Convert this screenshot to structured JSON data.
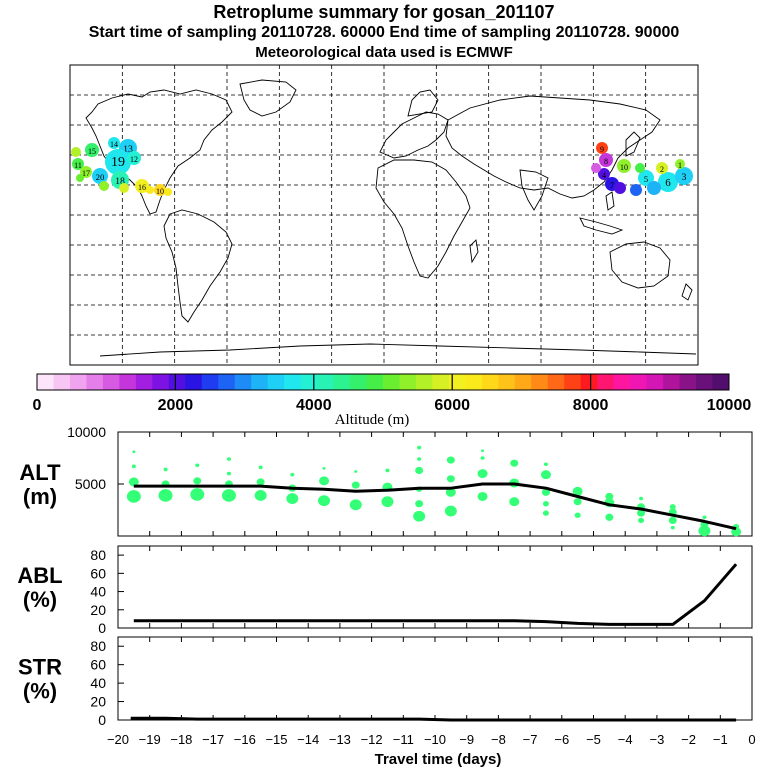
{
  "header": {
    "title": "Retroplume summary for gosan_201107",
    "sampling_line": "Start time of sampling 20110728. 60000     End time of sampling 20110728. 90000",
    "met_line": "Meteorological data used is ECMWF"
  },
  "colorbar": {
    "label": "Altitude (m)",
    "ticks": [
      "0",
      "2000",
      "4000",
      "6000",
      "8000",
      "10000"
    ],
    "colors": [
      "#fde6fb",
      "#f7c6f5",
      "#f0a3ef",
      "#e47ee8",
      "#d65ae2",
      "#c436dc",
      "#a21ee0",
      "#7d12e2",
      "#5210e0",
      "#2a14e4",
      "#1f3cf0",
      "#1d64f4",
      "#1d8cf6",
      "#1eb2f7",
      "#1ecff6",
      "#20e6ee",
      "#24f0d4",
      "#28f2b4",
      "#2cf290",
      "#34f06a",
      "#46ee48",
      "#6aee30",
      "#90f02a",
      "#b4f028",
      "#d6f024",
      "#f2f020",
      "#faea1c",
      "#ffd81a",
      "#ffc218",
      "#ffa818",
      "#ff8a16",
      "#ff6816",
      "#ff4216",
      "#ff1a22",
      "#ff1670",
      "#ff16a0",
      "#f016b4",
      "#d416b4",
      "#b0149c",
      "#8a1288",
      "#6a107a",
      "#520e6c"
    ]
  },
  "chart_data": [
    {
      "type": "line",
      "name": "ALT",
      "ylabel": "ALT\n(m)",
      "ylabel_lines": [
        "ALT",
        "(m)"
      ],
      "ylim": [
        0,
        10000
      ],
      "yticks": [
        0,
        5000,
        10000
      ],
      "ytick_labels": [
        "",
        "5000",
        "10000"
      ],
      "x": [
        -19.5,
        -18.5,
        -17.5,
        -16.5,
        -15.5,
        -14.5,
        -13.5,
        -12.5,
        -11.5,
        -10.5,
        -9.5,
        -8.5,
        -7.5,
        -6.5,
        -5.5,
        -4.5,
        -3.5,
        -2.5,
        -1.5,
        -0.5
      ],
      "mean_altitude": [
        4800,
        4800,
        4800,
        4800,
        4800,
        4600,
        4500,
        4300,
        4400,
        4600,
        4600,
        5000,
        5000,
        4600,
        3800,
        3000,
        2600,
        2000,
        1400,
        700
      ],
      "scatter_color": "#33ff77",
      "scatter_points": [
        {
          "x": -19.5,
          "y": 3800,
          "s": 7
        },
        {
          "x": -19.5,
          "y": 5200,
          "s": 5
        },
        {
          "x": -19.5,
          "y": 6700,
          "s": 2
        },
        {
          "x": -19.5,
          "y": 8100,
          "s": 1.5
        },
        {
          "x": -18.5,
          "y": 3900,
          "s": 7
        },
        {
          "x": -18.5,
          "y": 5000,
          "s": 4
        },
        {
          "x": -18.5,
          "y": 6400,
          "s": 2
        },
        {
          "x": -17.5,
          "y": 4000,
          "s": 7
        },
        {
          "x": -17.5,
          "y": 5300,
          "s": 4
        },
        {
          "x": -17.5,
          "y": 6800,
          "s": 2
        },
        {
          "x": -16.5,
          "y": 3900,
          "s": 7
        },
        {
          "x": -16.5,
          "y": 5000,
          "s": 4
        },
        {
          "x": -16.5,
          "y": 6000,
          "s": 2
        },
        {
          "x": -16.5,
          "y": 7400,
          "s": 2
        },
        {
          "x": -15.5,
          "y": 3900,
          "s": 6
        },
        {
          "x": -15.5,
          "y": 5200,
          "s": 4
        },
        {
          "x": -15.5,
          "y": 6600,
          "s": 2
        },
        {
          "x": -14.5,
          "y": 3600,
          "s": 6
        },
        {
          "x": -14.5,
          "y": 4600,
          "s": 4
        },
        {
          "x": -14.5,
          "y": 5900,
          "s": 2
        },
        {
          "x": -13.5,
          "y": 3400,
          "s": 6
        },
        {
          "x": -13.5,
          "y": 5300,
          "s": 5
        },
        {
          "x": -13.5,
          "y": 6500,
          "s": 1.5
        },
        {
          "x": -12.5,
          "y": 3000,
          "s": 6
        },
        {
          "x": -12.5,
          "y": 4900,
          "s": 4
        },
        {
          "x": -12.5,
          "y": 6200,
          "s": 1.5
        },
        {
          "x": -11.5,
          "y": 3300,
          "s": 6
        },
        {
          "x": -11.5,
          "y": 4700,
          "s": 5
        },
        {
          "x": -11.5,
          "y": 6300,
          "s": 2
        },
        {
          "x": -10.5,
          "y": 1900,
          "s": 6
        },
        {
          "x": -10.5,
          "y": 3100,
          "s": 4
        },
        {
          "x": -10.5,
          "y": 4500,
          "s": 3
        },
        {
          "x": -10.5,
          "y": 6300,
          "s": 4
        },
        {
          "x": -10.5,
          "y": 7400,
          "s": 2
        },
        {
          "x": -10.5,
          "y": 8500,
          "s": 2
        },
        {
          "x": -9.5,
          "y": 2400,
          "s": 6
        },
        {
          "x": -9.5,
          "y": 4200,
          "s": 5
        },
        {
          "x": -9.5,
          "y": 5500,
          "s": 4
        },
        {
          "x": -9.5,
          "y": 7300,
          "s": 4
        },
        {
          "x": -8.5,
          "y": 3800,
          "s": 5
        },
        {
          "x": -8.5,
          "y": 6000,
          "s": 5
        },
        {
          "x": -8.5,
          "y": 7500,
          "s": 2
        },
        {
          "x": -8.5,
          "y": 8200,
          "s": 1.5
        },
        {
          "x": -7.5,
          "y": 3300,
          "s": 5
        },
        {
          "x": -7.5,
          "y": 5100,
          "s": 5
        },
        {
          "x": -7.5,
          "y": 7000,
          "s": 4
        },
        {
          "x": -6.5,
          "y": 2200,
          "s": 3
        },
        {
          "x": -6.5,
          "y": 3100,
          "s": 3
        },
        {
          "x": -6.5,
          "y": 4200,
          "s": 4
        },
        {
          "x": -6.5,
          "y": 5900,
          "s": 5
        },
        {
          "x": -6.5,
          "y": 6900,
          "s": 2
        },
        {
          "x": -5.5,
          "y": 2000,
          "s": 3
        },
        {
          "x": -5.5,
          "y": 3300,
          "s": 4
        },
        {
          "x": -5.5,
          "y": 4300,
          "s": 5
        },
        {
          "x": -4.5,
          "y": 1800,
          "s": 4
        },
        {
          "x": -4.5,
          "y": 3200,
          "s": 5
        },
        {
          "x": -4.5,
          "y": 3800,
          "s": 4
        },
        {
          "x": -3.5,
          "y": 1500,
          "s": 3
        },
        {
          "x": -3.5,
          "y": 2200,
          "s": 4
        },
        {
          "x": -3.5,
          "y": 2800,
          "s": 4
        },
        {
          "x": -3.5,
          "y": 3600,
          "s": 2
        },
        {
          "x": -2.5,
          "y": 800,
          "s": 2
        },
        {
          "x": -2.5,
          "y": 1500,
          "s": 4
        },
        {
          "x": -2.5,
          "y": 2300,
          "s": 4
        },
        {
          "x": -2.5,
          "y": 2800,
          "s": 3
        },
        {
          "x": -1.5,
          "y": 500,
          "s": 6
        },
        {
          "x": -1.5,
          "y": 1100,
          "s": 4
        },
        {
          "x": -1.5,
          "y": 1800,
          "s": 2
        },
        {
          "x": -0.5,
          "y": 400,
          "s": 5
        },
        {
          "x": -0.5,
          "y": 900,
          "s": 3
        }
      ]
    },
    {
      "type": "line",
      "name": "ABL",
      "ylabel_lines": [
        "ABL",
        "(%)"
      ],
      "ylim": [
        0,
        90
      ],
      "yticks": [
        0,
        20,
        40,
        60,
        80
      ],
      "ytick_labels": [
        "0",
        "20",
        "40",
        "60",
        "80"
      ],
      "x": [
        -19.5,
        -18.5,
        -17.5,
        -16.5,
        -15.5,
        -14.5,
        -13.5,
        -12.5,
        -11.5,
        -10.5,
        -9.5,
        -8.5,
        -7.5,
        -6.5,
        -5.5,
        -4.5,
        -3.5,
        -2.5,
        -1.5,
        -0.5
      ],
      "values": [
        8,
        8,
        8,
        8,
        8,
        8,
        8,
        8,
        8,
        8,
        8,
        8,
        8,
        7,
        5,
        4,
        4,
        4,
        30,
        70
      ]
    },
    {
      "type": "line",
      "name": "STR",
      "ylabel_lines": [
        "STR",
        "(%)"
      ],
      "ylim": [
        0,
        90
      ],
      "yticks": [
        0,
        20,
        40,
        60,
        80
      ],
      "ytick_labels": [
        "0",
        "20",
        "40",
        "60",
        "80"
      ],
      "x": [
        -19.6,
        -18.5,
        -17.5,
        -16.5,
        -15.5,
        -14.5,
        -13.5,
        -12.5,
        -11.5,
        -10.5,
        -9.5,
        -8.5,
        -7.5,
        -6.5,
        -5.5,
        -4.5,
        -3.5,
        -2.5,
        -1.5,
        -0.5
      ],
      "values": [
        2,
        2,
        1,
        1,
        1,
        1,
        1,
        1,
        1,
        1,
        0,
        0,
        0,
        0,
        0,
        0,
        0,
        0,
        0,
        0
      ]
    }
  ],
  "xaxis": {
    "label": "Travel time (days)",
    "xlim": [
      -20,
      0
    ],
    "ticks": [
      -20,
      -19,
      -18,
      -17,
      -16,
      -15,
      -14,
      -13,
      -12,
      -11,
      -10,
      -9,
      -8,
      -7,
      -6,
      -5,
      -4,
      -3,
      -2,
      -1,
      0
    ],
    "tick_labels": [
      "−20",
      "−19",
      "−18",
      "−17",
      "−16",
      "−15",
      "−14",
      "−13",
      "−12",
      "−11",
      "−10",
      "−9",
      "−8",
      "−7",
      "−6",
      "−5",
      "−4",
      "−3",
      "−2",
      "−1",
      "0"
    ]
  },
  "map": {
    "east_cluster_labels": [
      "9",
      "8",
      "4",
      "10",
      "7",
      "5",
      "6",
      "3",
      "2",
      "1"
    ],
    "west_cluster_labels": [
      "14",
      "13",
      "15",
      "19",
      "12",
      "11",
      "17",
      "20",
      "18",
      "16",
      "10"
    ]
  }
}
